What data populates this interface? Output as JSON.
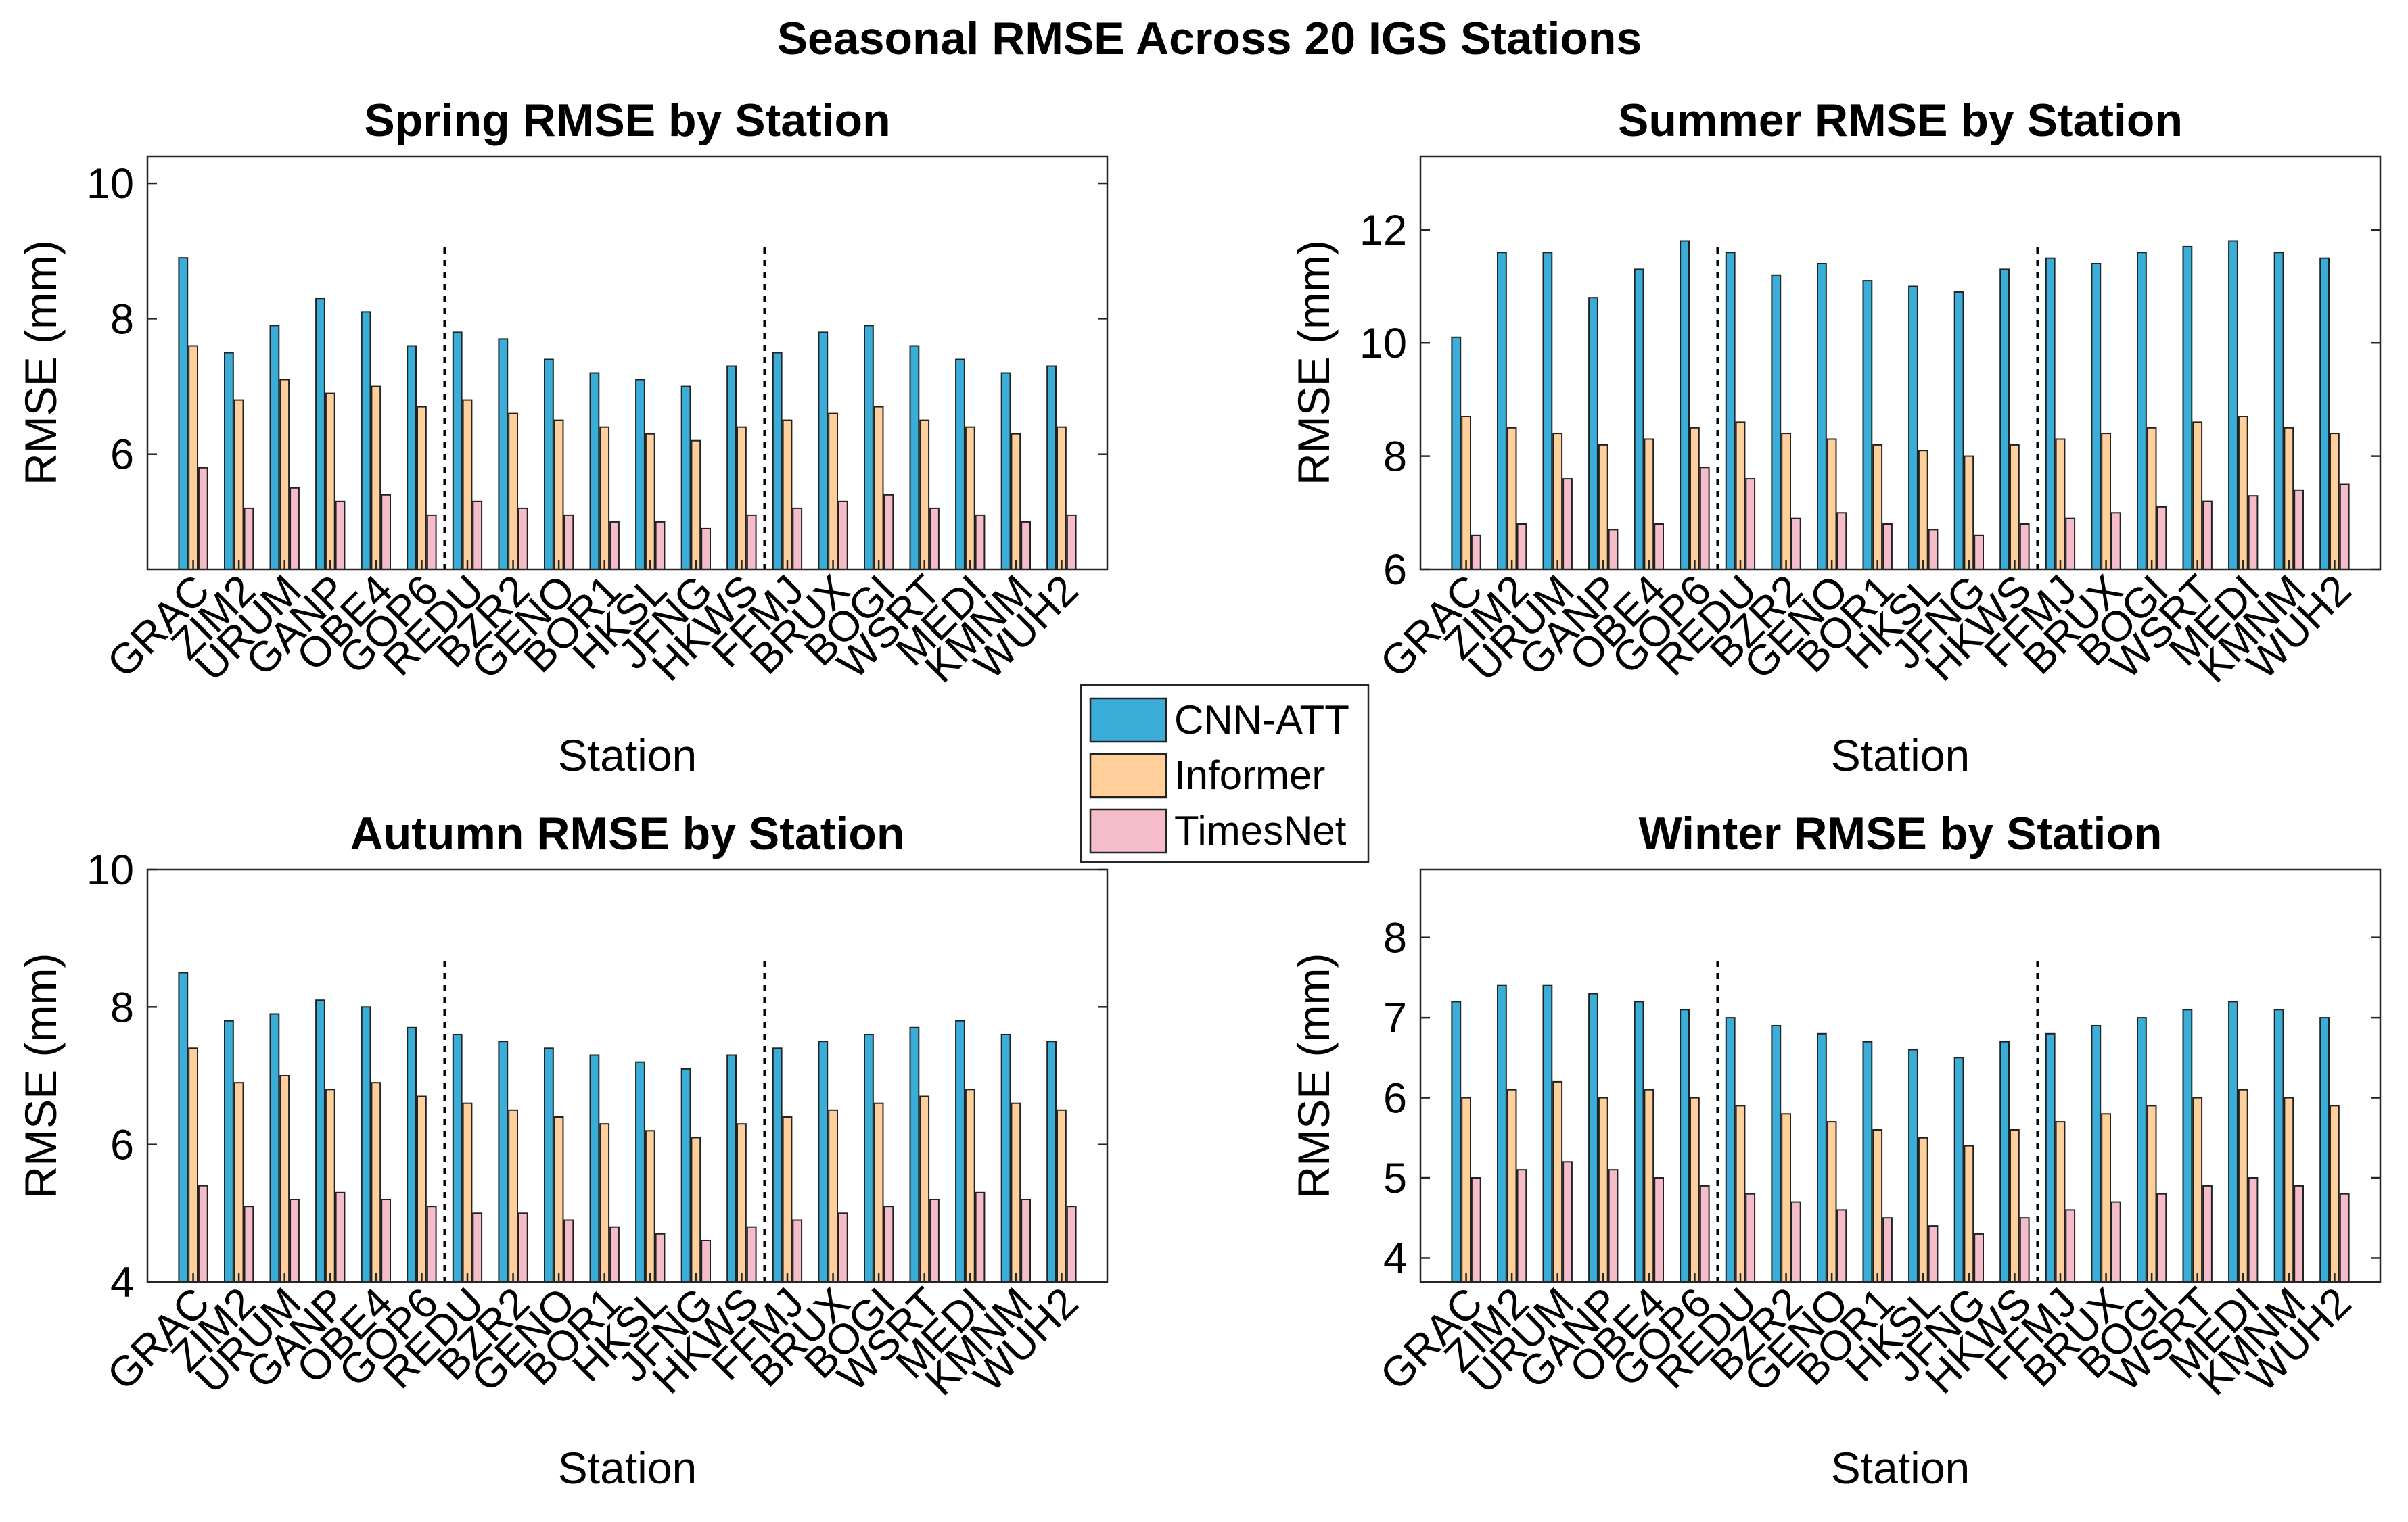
{
  "colors": {
    "CNN-ATT": "#3AAED8",
    "Informer": "#FFD09B",
    "TimesNet": "#F5BCC9",
    "edge": "#222222"
  },
  "figure_title": "Seasonal RMSE Across 20 IGS Stations",
  "legend": {
    "entries": [
      "CNN-ATT",
      "Informer",
      "TimesNet"
    ],
    "placement": "center"
  },
  "chart_data": [
    {
      "type": "bar",
      "title": "Spring RMSE by Station",
      "xlabel": "Station",
      "ylabel": "RMSE (mm)",
      "ylim": [
        4.3,
        10.4
      ],
      "yticks": [
        6,
        8,
        10
      ],
      "categories": [
        "GRAC",
        "ZIM2",
        "URUM",
        "GANP",
        "OBE4",
        "GOP6",
        "REDU",
        "BZR2",
        "GENO",
        "BOR1",
        "HKSL",
        "JFNG",
        "HKWS",
        "FFMJ",
        "BRUX",
        "BOGI",
        "WSRT",
        "MEDI",
        "KMNM",
        "WUH2"
      ],
      "dividers_after": [
        "GOP6",
        "HKWS"
      ],
      "series": [
        {
          "name": "CNN-ATT",
          "values": [
            8.9,
            7.5,
            7.9,
            8.3,
            8.1,
            7.6,
            7.8,
            7.7,
            7.4,
            7.2,
            7.1,
            7.0,
            7.3,
            7.5,
            7.8,
            7.9,
            7.6,
            7.4,
            7.2,
            7.3
          ]
        },
        {
          "name": "Informer",
          "values": [
            7.6,
            6.8,
            7.1,
            6.9,
            7.0,
            6.7,
            6.8,
            6.6,
            6.5,
            6.4,
            6.3,
            6.2,
            6.4,
            6.5,
            6.6,
            6.7,
            6.5,
            6.4,
            6.3,
            6.4
          ]
        },
        {
          "name": "TimesNet",
          "values": [
            5.8,
            5.2,
            5.5,
            5.3,
            5.4,
            5.1,
            5.3,
            5.2,
            5.1,
            5.0,
            5.0,
            4.9,
            5.1,
            5.2,
            5.3,
            5.4,
            5.2,
            5.1,
            5.0,
            5.1
          ]
        }
      ]
    },
    {
      "type": "bar",
      "title": "Summer RMSE by Station",
      "xlabel": "Station",
      "ylabel": "RMSE (mm)",
      "ylim": [
        6,
        13.3
      ],
      "yticks": [
        6,
        8,
        10,
        12
      ],
      "categories": [
        "GRAC",
        "ZIM2",
        "URUM",
        "GANP",
        "OBE4",
        "GOP6",
        "REDU",
        "BZR2",
        "GENO",
        "BOR1",
        "HKSL",
        "JFNG",
        "HKWS",
        "FFMJ",
        "BRUX",
        "BOGI",
        "WSRT",
        "MEDI",
        "KMNM",
        "WUH2"
      ],
      "dividers_after": [
        "GOP6",
        "HKWS"
      ],
      "series": [
        {
          "name": "CNN-ATT",
          "values": [
            10.1,
            11.6,
            11.6,
            10.8,
            11.3,
            11.8,
            11.6,
            11.2,
            11.4,
            11.1,
            11.0,
            10.9,
            11.3,
            11.5,
            11.4,
            11.6,
            11.7,
            11.8,
            11.6,
            11.5
          ]
        },
        {
          "name": "Informer",
          "values": [
            8.7,
            8.5,
            8.4,
            8.2,
            8.3,
            8.5,
            8.6,
            8.4,
            8.3,
            8.2,
            8.1,
            8.0,
            8.2,
            8.3,
            8.4,
            8.5,
            8.6,
            8.7,
            8.5,
            8.4
          ]
        },
        {
          "name": "TimesNet",
          "values": [
            6.6,
            6.8,
            7.6,
            6.7,
            6.8,
            7.8,
            7.6,
            6.9,
            7.0,
            6.8,
            6.7,
            6.6,
            6.8,
            6.9,
            7.0,
            7.1,
            7.2,
            7.3,
            7.4,
            7.5
          ]
        }
      ]
    },
    {
      "type": "bar",
      "title": "Autumn RMSE by Station",
      "xlabel": "Station",
      "ylabel": "RMSE (mm)",
      "ylim": [
        4,
        10
      ],
      "yticks": [
        4,
        6,
        8,
        10
      ],
      "categories": [
        "GRAC",
        "ZIM2",
        "URUM",
        "GANP",
        "OBE4",
        "GOP6",
        "REDU",
        "BZR2",
        "GENO",
        "BOR1",
        "HKSL",
        "JFNG",
        "HKWS",
        "FFMJ",
        "BRUX",
        "BOGI",
        "WSRT",
        "MEDI",
        "KMNM",
        "WUH2"
      ],
      "dividers_after": [
        "GOP6",
        "HKWS"
      ],
      "series": [
        {
          "name": "CNN-ATT",
          "values": [
            8.5,
            7.8,
            7.9,
            8.1,
            8.0,
            7.7,
            7.6,
            7.5,
            7.4,
            7.3,
            7.2,
            7.1,
            7.3,
            7.4,
            7.5,
            7.6,
            7.7,
            7.8,
            7.6,
            7.5
          ]
        },
        {
          "name": "Informer",
          "values": [
            7.4,
            6.9,
            7.0,
            6.8,
            6.9,
            6.7,
            6.6,
            6.5,
            6.4,
            6.3,
            6.2,
            6.1,
            6.3,
            6.4,
            6.5,
            6.6,
            6.7,
            6.8,
            6.6,
            6.5
          ]
        },
        {
          "name": "TimesNet",
          "values": [
            5.4,
            5.1,
            5.2,
            5.3,
            5.2,
            5.1,
            5.0,
            5.0,
            4.9,
            4.8,
            4.7,
            4.6,
            4.8,
            4.9,
            5.0,
            5.1,
            5.2,
            5.3,
            5.2,
            5.1
          ]
        }
      ]
    },
    {
      "type": "bar",
      "title": "Winter RMSE by Station",
      "xlabel": "Station",
      "ylabel": "RMSE (mm)",
      "ylim": [
        3.7,
        8.85
      ],
      "yticks": [
        4,
        5,
        6,
        7,
        8
      ],
      "categories": [
        "GRAC",
        "ZIM2",
        "URUM",
        "GANP",
        "OBE4",
        "GOP6",
        "REDU",
        "BZR2",
        "GENO",
        "BOR1",
        "HKSL",
        "JFNG",
        "HKWS",
        "FFMJ",
        "BRUX",
        "BOGI",
        "WSRT",
        "MEDI",
        "KMNM",
        "WUH2"
      ],
      "dividers_after": [
        "GOP6",
        "HKWS"
      ],
      "series": [
        {
          "name": "CNN-ATT",
          "values": [
            7.2,
            7.4,
            7.4,
            7.3,
            7.2,
            7.1,
            7.0,
            6.9,
            6.8,
            6.7,
            6.6,
            6.5,
            6.7,
            6.8,
            6.9,
            7.0,
            7.1,
            7.2,
            7.1,
            7.0
          ]
        },
        {
          "name": "Informer",
          "values": [
            6.0,
            6.1,
            6.2,
            6.0,
            6.1,
            6.0,
            5.9,
            5.8,
            5.7,
            5.6,
            5.5,
            5.4,
            5.6,
            5.7,
            5.8,
            5.9,
            6.0,
            6.1,
            6.0,
            5.9
          ]
        },
        {
          "name": "TimesNet",
          "values": [
            5.0,
            5.1,
            5.2,
            5.1,
            5.0,
            4.9,
            4.8,
            4.7,
            4.6,
            4.5,
            4.4,
            4.3,
            4.5,
            4.6,
            4.7,
            4.8,
            4.9,
            5.0,
            4.9,
            4.8
          ]
        }
      ]
    }
  ]
}
